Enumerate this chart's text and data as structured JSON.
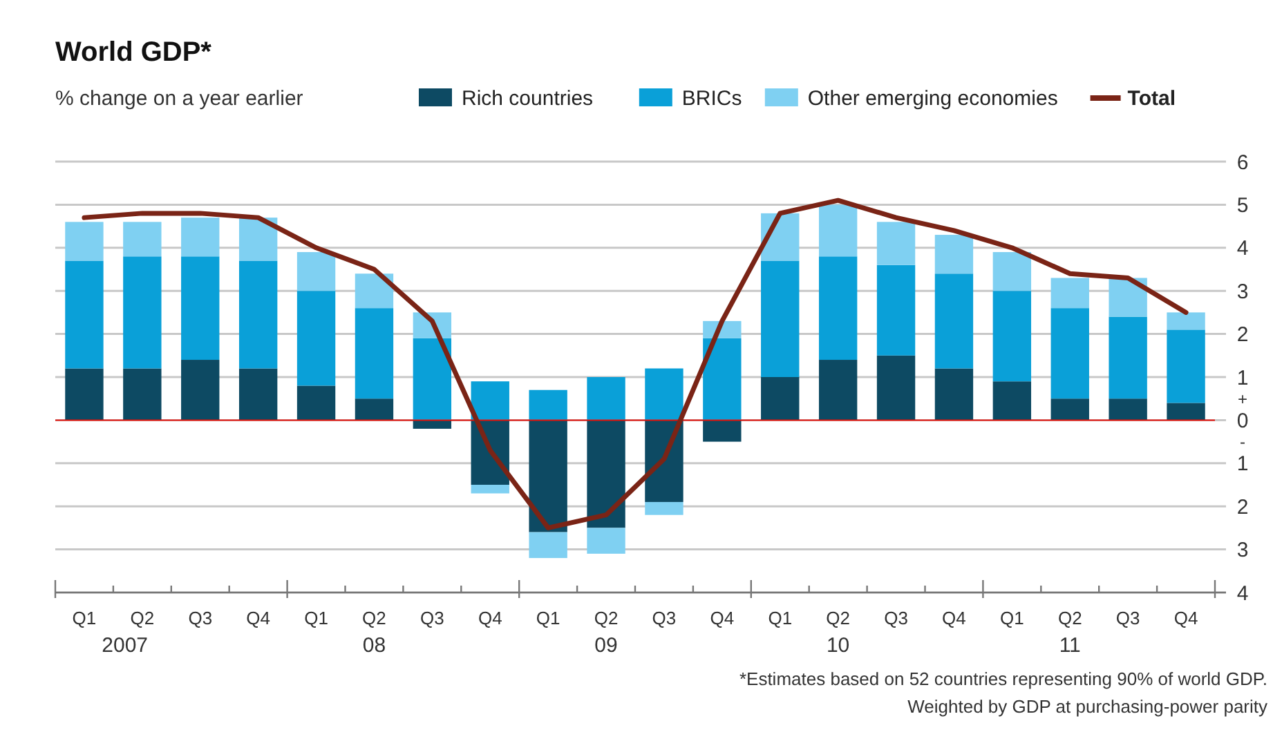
{
  "chart_data": {
    "type": "bar",
    "stacked": true,
    "title": "World GDP*",
    "subtitle": "% change on a year earlier",
    "categories": [
      "Q1",
      "Q2",
      "Q3",
      "Q4",
      "Q1",
      "Q2",
      "Q3",
      "Q4",
      "Q1",
      "Q2",
      "Q3",
      "Q4",
      "Q1",
      "Q2",
      "Q3",
      "Q4",
      "Q1",
      "Q2",
      "Q3",
      "Q4"
    ],
    "series": [
      {
        "name": "Rich countries",
        "color": "#0d4a63",
        "values": [
          1.2,
          1.2,
          1.4,
          1.2,
          0.8,
          0.5,
          -0.2,
          -1.5,
          -2.6,
          -2.5,
          -1.9,
          -0.5,
          1.0,
          1.4,
          1.5,
          1.2,
          0.9,
          0.5,
          0.5,
          0.4
        ]
      },
      {
        "name": "BRICs",
        "color": "#0aa0d8",
        "values": [
          2.5,
          2.6,
          2.4,
          2.5,
          2.2,
          2.1,
          1.9,
          0.9,
          0.7,
          1.0,
          1.2,
          1.9,
          2.7,
          2.4,
          2.1,
          2.2,
          2.1,
          2.1,
          1.9,
          1.7
        ]
      },
      {
        "name": "Other emerging economies",
        "color": "#7fd0f2",
        "values": [
          0.9,
          0.8,
          0.9,
          1.0,
          0.9,
          0.8,
          0.6,
          -0.2,
          -0.6,
          -0.6,
          -0.3,
          0.4,
          1.1,
          1.2,
          1.0,
          0.9,
          0.9,
          0.7,
          0.9,
          0.4
        ]
      },
      {
        "name": "Total",
        "type": "line",
        "color": "#7a2416",
        "values": [
          4.7,
          4.8,
          4.8,
          4.7,
          4.0,
          3.5,
          2.3,
          -0.7,
          -2.5,
          -2.2,
          -0.9,
          2.3,
          4.8,
          5.1,
          4.7,
          4.4,
          4.0,
          3.4,
          3.3,
          2.5
        ]
      }
    ],
    "ylim": [
      -4,
      6
    ],
    "yticks": [
      {
        "value": -4,
        "label": "4"
      },
      {
        "value": -3,
        "label": "3"
      },
      {
        "value": -2,
        "label": "2"
      },
      {
        "value": -1,
        "label": "1"
      },
      {
        "value": -0.5,
        "label": "-"
      },
      0,
      {
        "value": 0.5,
        "label": "+"
      },
      1,
      2,
      3,
      4,
      5,
      6
    ],
    "grid": "y",
    "legend": "top",
    "ref_lines": [
      {
        "axis": "y",
        "value": 0,
        "color": "#e3120b"
      }
    ],
    "annotations": [
      "2007",
      "08",
      "09",
      "10",
      "11",
      "*Estimates based on 52 countries representing 90% of world GDP.\nWeighted by GDP at purchasing-power parity"
    ]
  }
}
